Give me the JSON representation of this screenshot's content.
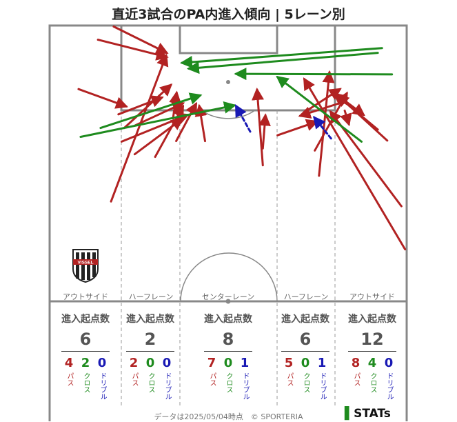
{
  "title": "直近3試合のPA内進入傾向 | 5レーン別",
  "lanes": [
    {
      "label": "アウトサイド",
      "stat_header": "進入起点数",
      "total": "6",
      "pass": "4",
      "cross": "2",
      "dribble": "0"
    },
    {
      "label": "ハーフレーン",
      "stat_header": "進入起点数",
      "total": "2",
      "pass": "2",
      "cross": "0",
      "dribble": "0"
    },
    {
      "label": "センターレーン",
      "stat_header": "進入起点数",
      "total": "8",
      "pass": "7",
      "cross": "0",
      "dribble": "1"
    },
    {
      "label": "ハーフレーン",
      "stat_header": "進入起点数",
      "total": "6",
      "pass": "5",
      "cross": "0",
      "dribble": "1"
    },
    {
      "label": "アウトサイド",
      "stat_header": "進入起点数",
      "total": "12",
      "pass": "8",
      "cross": "4",
      "dribble": "0"
    }
  ],
  "type_labels": {
    "pass": "パス",
    "cross": "クロス",
    "dribble": "ドリブル"
  },
  "colors": {
    "pass": "#b22222",
    "cross": "#1e8b1e",
    "dribble": "#1919b4",
    "line": "#888888"
  },
  "crest_text": "VISSEL",
  "footer": "データは2025/05/04時点　© SPORTERIA",
  "brand": "STATs",
  "chart_data": {
    "type": "arrows",
    "units": "pitch coordinates in metres: x = width 0–68 (left to right), y = distance from goal line 0–52.5 (halfway line)",
    "arrows": [
      {
        "kind": "pass",
        "from": [
          12.2,
          0.2
        ],
        "to": [
          22.3,
          5.2
        ]
      },
      {
        "kind": "pass",
        "from": [
          9.2,
          2.7
        ],
        "to": [
          22.3,
          6.0
        ]
      },
      {
        "kind": "pass",
        "from": [
          11.7,
          33.5
        ],
        "to": [
          22.2,
          5.7
        ]
      },
      {
        "kind": "pass",
        "from": [
          5.5,
          12.1
        ],
        "to": [
          14.6,
          15.4
        ]
      },
      {
        "kind": "pass",
        "from": [
          13.1,
          16.9
        ],
        "to": [
          21.4,
          13.7
        ]
      },
      {
        "kind": "pass",
        "from": [
          14.2,
          19.5
        ],
        "to": [
          23.1,
          11.3
        ]
      },
      {
        "kind": "pass",
        "from": [
          13.7,
          22.1
        ],
        "to": [
          26.3,
          17.0
        ]
      },
      {
        "kind": "pass",
        "from": [
          16.3,
          19.0
        ],
        "to": [
          25.4,
          14.8
        ]
      },
      {
        "kind": "pass",
        "from": [
          16.2,
          24.5
        ],
        "to": [
          25.2,
          17.8
        ]
      },
      {
        "kind": "pass",
        "from": [
          20.1,
          25.0
        ],
        "to": [
          25.4,
          15.4
        ]
      },
      {
        "kind": "pass",
        "from": [
          23.5,
          17.7
        ],
        "to": [
          24.2,
          12.8
        ]
      },
      {
        "kind": "pass",
        "from": [
          24.1,
          22.0
        ],
        "to": [
          27.9,
          14.9
        ]
      },
      {
        "kind": "pass",
        "from": [
          29.6,
          22.0
        ],
        "to": [
          28.5,
          15.3
        ]
      },
      {
        "kind": "pass",
        "from": [
          40.6,
          23.4
        ],
        "to": [
          41.1,
          17.1
        ]
      },
      {
        "kind": "pass",
        "from": [
          40.6,
          26.6
        ],
        "to": [
          39.5,
          12.2
        ]
      },
      {
        "kind": "pass",
        "from": [
          43.4,
          20.9
        ],
        "to": [
          50.9,
          18.3
        ]
      },
      {
        "kind": "pass",
        "from": [
          51.3,
          28.6
        ],
        "to": [
          53.3,
          8.9
        ]
      },
      {
        "kind": "pass",
        "from": [
          50.5,
          23.8
        ],
        "to": [
          56.6,
          12.9
        ]
      },
      {
        "kind": "pass",
        "from": [
          49.0,
          16.2
        ],
        "to": [
          55.3,
          12.1
        ]
      },
      {
        "kind": "pass",
        "from": [
          55.0,
          13.4
        ],
        "to": [
          59.8,
          17.0
        ]
      },
      {
        "kind": "pass",
        "from": [
          56.2,
          16.2
        ],
        "to": [
          57.0,
          18.8
        ]
      },
      {
        "kind": "pass",
        "from": [
          64.3,
          21.9
        ],
        "to": [
          54.9,
          13.3
        ]
      },
      {
        "kind": "pass",
        "from": [
          67.7,
          42.6
        ],
        "to": [
          48.5,
          10.2
        ]
      },
      {
        "kind": "pass",
        "from": [
          67.0,
          34.4
        ],
        "to": [
          53.5,
          16.4
        ]
      },
      {
        "kind": "pass",
        "from": [
          62.5,
          19.8
        ],
        "to": [
          54.3,
          13.0
        ]
      },
      {
        "kind": "pass",
        "from": [
          56.1,
          14.5
        ],
        "to": [
          47.7,
          17.2
        ]
      },
      {
        "kind": "cross",
        "from": [
          5.9,
          21.2
        ],
        "to": [
          35.2,
          15.2
        ]
      },
      {
        "kind": "cross",
        "from": [
          9.7,
          19.5
        ],
        "to": [
          28.7,
          13.3
        ]
      },
      {
        "kind": "cross",
        "from": [
          63.3,
          4.3
        ],
        "to": [
          25.2,
          7.1
        ]
      },
      {
        "kind": "cross",
        "from": [
          62.5,
          5.2
        ],
        "to": [
          26.5,
          8.2
        ]
      },
      {
        "kind": "cross",
        "from": [
          65.2,
          9.3
        ],
        "to": [
          35.5,
          9.2
        ]
      },
      {
        "kind": "cross",
        "from": [
          59.4,
          22.1
        ],
        "to": [
          43.4,
          9.8
        ]
      },
      {
        "kind": "dribble",
        "from": [
          38.2,
          20.2
        ],
        "to": [
          35.5,
          15.3
        ]
      },
      {
        "kind": "dribble",
        "from": [
          53.6,
          21.5
        ],
        "to": [
          50.4,
          17.5
        ]
      }
    ]
  }
}
